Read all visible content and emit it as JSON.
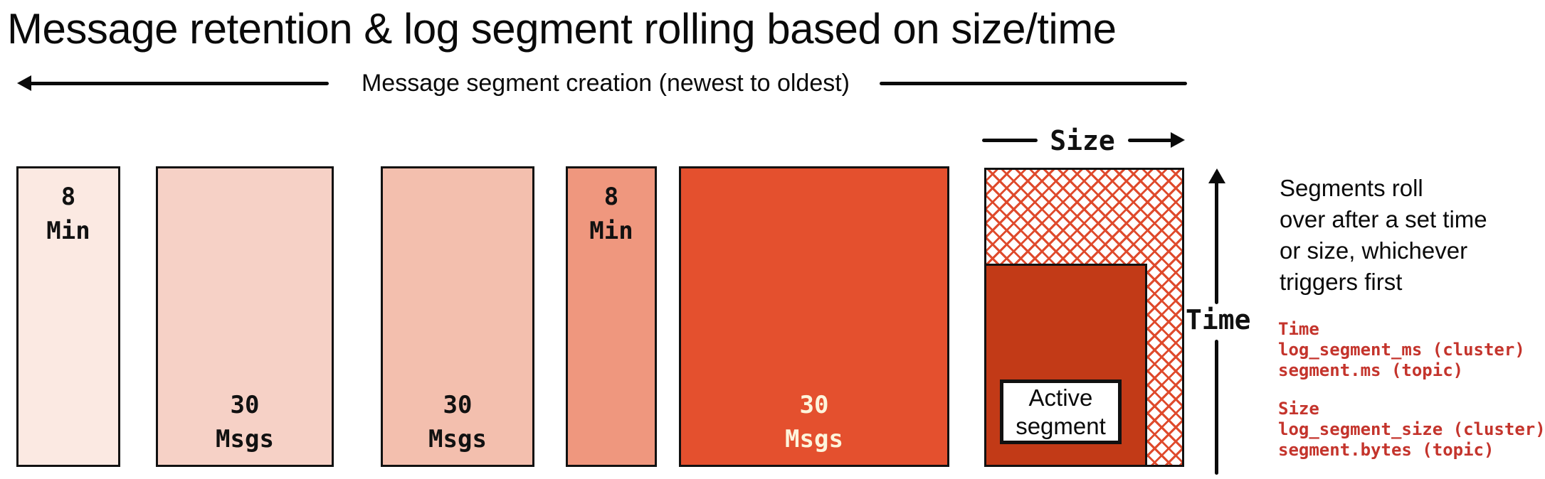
{
  "title": "Message retention & log segment rolling based on size/time",
  "creation_arrow": {
    "label": "Message segment creation (newest to oldest)"
  },
  "segments": [
    {
      "label": "8\nMin",
      "fill": "#fbe9e2",
      "text_color": "#111111",
      "label_position": "top"
    },
    {
      "label": "30\nMsgs",
      "fill": "#f6d1c6",
      "text_color": "#111111",
      "label_position": "bottom"
    },
    {
      "label": "30\nMsgs",
      "fill": "#f3bfae",
      "text_color": "#111111",
      "label_position": "bottom"
    },
    {
      "label": "8\nMin",
      "fill": "#ef977e",
      "text_color": "#111111",
      "label_position": "top"
    },
    {
      "label": "30\nMsgs",
      "fill": "#e4502e",
      "text_color": "#fdf5dc",
      "label_position": "bottom"
    }
  ],
  "active_segment_panel": {
    "size_axis_label": "Size",
    "time_axis_label": "Time",
    "active_label": "Active\nsegment"
  },
  "notes": {
    "paragraph": "Segments roll\nover after a set time\nor size, whichever\ntriggers first",
    "config": [
      {
        "heading": "Time",
        "lines": [
          "log_segment_ms (cluster)",
          "segment.ms (topic)"
        ]
      },
      {
        "heading": "Size",
        "lines": [
          "log_segment_size (cluster)",
          "segment.bytes (topic)"
        ]
      }
    ]
  },
  "colors": {
    "ink": "#111111",
    "hatch": "#df4a2c",
    "active_fill": "#c23a17",
    "config_text": "#c4342c",
    "canvas": "#ffffff"
  }
}
